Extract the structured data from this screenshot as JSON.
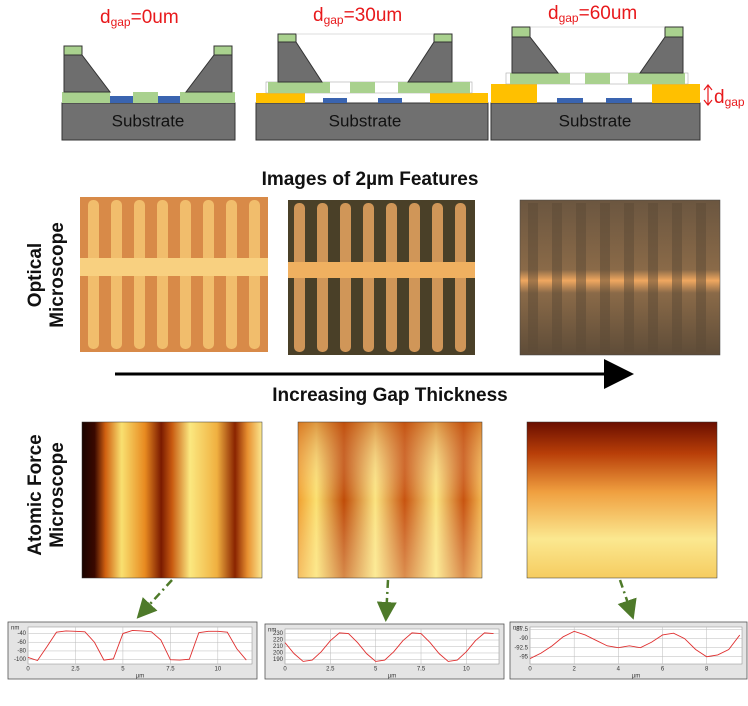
{
  "diagrams": [
    {
      "label": {
        "d": "d",
        "sub": "gap",
        "rest": "=0um"
      },
      "substrate": "Substrate"
    },
    {
      "label": {
        "d": "d",
        "sub": "gap",
        "rest": "=30um"
      },
      "substrate": "Substrate"
    },
    {
      "label": {
        "d": "d",
        "sub": "gap",
        "rest": "=60um"
      },
      "substrate": "Substrate"
    }
  ],
  "gap_marker": {
    "d": "d",
    "sub": "gap"
  },
  "headings": {
    "images": "Images of 2µm Features",
    "optical": [
      "Optical",
      "Microscope"
    ],
    "arrow": "Increasing Gap Thickness",
    "afm": [
      "Atomic Force",
      "Microscope"
    ]
  },
  "chart_data": [
    {
      "type": "line",
      "xlabel": "µm",
      "ylabel": "nm",
      "color": "#e03030",
      "grid": true,
      "x": [
        0,
        0.5,
        1,
        1.5,
        2,
        2.5,
        3,
        3.5,
        4,
        4.5,
        5,
        5.5,
        6,
        6.5,
        7,
        7.5,
        8,
        8.5,
        9,
        9.5,
        10,
        10.5,
        11,
        11.5
      ],
      "values": [
        -95,
        -102,
        -70,
        -37,
        -34,
        -35,
        -36,
        -60,
        -101,
        -98,
        -40,
        -33,
        -34,
        -36,
        -55,
        -100,
        -101,
        -99,
        -38,
        -35,
        -35,
        -37,
        -75,
        -101
      ],
      "xlim": [
        0,
        11.8
      ],
      "ylim": [
        -110,
        -25
      ],
      "xticks": [
        0,
        2.5,
        5,
        7.5,
        10
      ],
      "yticks": [
        -40,
        -60,
        -80,
        -100
      ]
    },
    {
      "type": "line",
      "xlabel": "µm",
      "ylabel": "nm",
      "color": "#e03030",
      "grid": true,
      "x": [
        0,
        0.5,
        1,
        1.5,
        2,
        2.5,
        3,
        3.5,
        4,
        4.5,
        5,
        5.5,
        6,
        6.5,
        7,
        7.5,
        8,
        8.5,
        9,
        9.5,
        10,
        10.5,
        11,
        11.5
      ],
      "values": [
        216,
        199,
        187,
        189,
        202,
        219,
        231,
        230,
        216,
        199,
        187,
        189,
        202,
        219,
        231,
        230,
        216,
        199,
        187,
        189,
        202,
        219,
        231,
        230
      ],
      "xlim": [
        0,
        11.8
      ],
      "ylim": [
        183,
        237
      ],
      "xticks": [
        0,
        2.5,
        5,
        7.5,
        10
      ],
      "yticks": [
        230,
        220,
        210,
        200,
        190
      ]
    },
    {
      "type": "line",
      "xlabel": "µm",
      "ylabel": "nm",
      "color": "#e03030",
      "grid": true,
      "x": [
        0,
        0.5,
        1,
        1.5,
        2,
        2.5,
        3,
        3.5,
        4,
        4.5,
        5,
        5.5,
        6,
        6.5,
        7,
        7.5,
        8,
        8.5,
        9,
        9.5
      ],
      "values": [
        -95.5,
        -94,
        -92,
        -89.5,
        -88,
        -89,
        -90.5,
        -92,
        -92.5,
        -92,
        -92.5,
        -91,
        -89,
        -88.5,
        -90,
        -93,
        -95,
        -94.5,
        -93,
        -89
      ],
      "xlim": [
        0,
        9.6
      ],
      "ylim": [
        -97,
        -86.8
      ],
      "xticks": [
        0,
        2,
        4,
        6,
        8
      ],
      "yticks": [
        -87.5,
        -90,
        -92.5,
        -95
      ]
    }
  ]
}
